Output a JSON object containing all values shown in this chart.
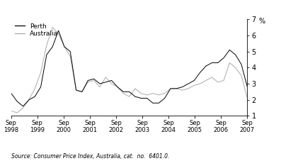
{
  "title": "",
  "ylabel_right": "%",
  "source_text": "Source: Consumer Price Index, Australia, cat.  no.  6401.0.",
  "legend_perth": "Perth",
  "legend_australia": "Australia",
  "perth_color": "#000000",
  "australia_color": "#aaaaaa",
  "ylim": [
    1,
    7
  ],
  "yticks": [
    1,
    2,
    3,
    4,
    5,
    6,
    7
  ],
  "x_tick_labels": [
    "Sep\n1998",
    "Sep\n1999",
    "Sep\n2000",
    "Sep\n2001",
    "Sep\n2002",
    "Sep\n2003",
    "Sep\n2004",
    "Sep\n2005",
    "Sep\n2006",
    "Sep\n2007"
  ],
  "perth_data": [
    2.4,
    1.9,
    1.6,
    2.0,
    2.2,
    2.8,
    4.8,
    5.3,
    6.3,
    5.3,
    5.0,
    2.6,
    2.5,
    3.2,
    3.3,
    3.0,
    3.1,
    3.2,
    2.8,
    2.5,
    2.5,
    2.2,
    2.1,
    2.1,
    1.8,
    1.8,
    2.1,
    2.7,
    2.7,
    2.8,
    3.0,
    3.2,
    3.7,
    4.1,
    4.3,
    4.3,
    4.6,
    5.1,
    4.8,
    4.2,
    2.8
  ],
  "australia_data": [
    1.3,
    1.2,
    1.5,
    2.0,
    2.7,
    3.7,
    5.4,
    6.5,
    6.1,
    5.3,
    4.7,
    2.6,
    2.5,
    3.1,
    3.2,
    2.8,
    3.4,
    3.0,
    2.8,
    2.4,
    2.2,
    2.7,
    2.4,
    2.3,
    2.4,
    2.3,
    2.4,
    2.7,
    2.7,
    2.6,
    2.7,
    2.9,
    3.0,
    3.2,
    3.4,
    3.1,
    3.2,
    4.3,
    4.0,
    3.5,
    2.1
  ]
}
